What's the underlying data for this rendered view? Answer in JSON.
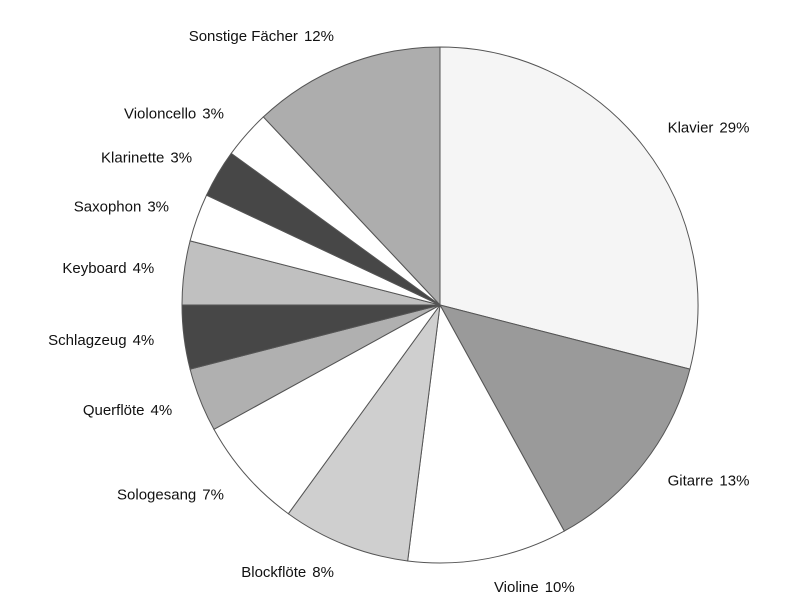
{
  "chart_data": {
    "type": "pie",
    "categories": [
      "Klavier",
      "Gitarre",
      "Violine",
      "Blockflöte",
      "Sologesang",
      "Querflöte",
      "Schlagzeug",
      "Keyboard",
      "Saxophon",
      "Klarinette",
      "Violoncello",
      "Sonstige Fächer"
    ],
    "values": [
      29,
      13,
      10,
      8,
      7,
      4,
      4,
      4,
      3,
      3,
      3,
      12
    ],
    "value_labels": [
      "29%",
      "13%",
      "10%",
      "8%",
      "7%",
      "4%",
      "4%",
      "4%",
      "3%",
      "3%",
      "3%",
      "12%"
    ],
    "colors": [
      "#f5f5f5",
      "#9a9a9a",
      "#ffffff",
      "#cfcfcf",
      "#ffffff",
      "#b0b0b0",
      "#474747",
      "#c0c0c0",
      "#ffffff",
      "#474747",
      "#ffffff",
      "#adadad"
    ]
  }
}
